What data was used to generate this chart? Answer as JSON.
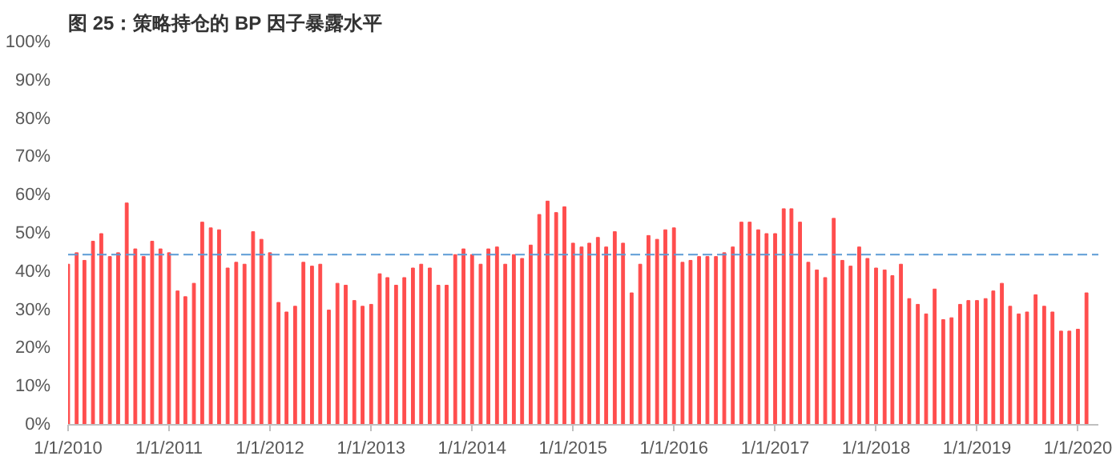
{
  "chart_data": {
    "type": "bar",
    "title": "图 25：策略持仓的 BP 因子暴露水平",
    "x": [
      "2010-01",
      "2010-02",
      "2010-03",
      "2010-04",
      "2010-05",
      "2010-06",
      "2010-07",
      "2010-08",
      "2010-09",
      "2010-10",
      "2010-11",
      "2010-12",
      "2011-01",
      "2011-02",
      "2011-03",
      "2011-04",
      "2011-05",
      "2011-06",
      "2011-07",
      "2011-08",
      "2011-09",
      "2011-10",
      "2011-11",
      "2011-12",
      "2012-01",
      "2012-02",
      "2012-03",
      "2012-04",
      "2012-05",
      "2012-06",
      "2012-07",
      "2012-08",
      "2012-09",
      "2012-10",
      "2012-11",
      "2012-12",
      "2013-01",
      "2013-02",
      "2013-03",
      "2013-04",
      "2013-05",
      "2013-06",
      "2013-07",
      "2013-08",
      "2013-09",
      "2013-10",
      "2013-11",
      "2013-12",
      "2014-01",
      "2014-02",
      "2014-03",
      "2014-04",
      "2014-05",
      "2014-06",
      "2014-07",
      "2014-08",
      "2014-09",
      "2014-10",
      "2014-11",
      "2014-12",
      "2015-01",
      "2015-02",
      "2015-03",
      "2015-04",
      "2015-05",
      "2015-06",
      "2015-07",
      "2015-08",
      "2015-09",
      "2015-10",
      "2015-11",
      "2015-12",
      "2016-01",
      "2016-02",
      "2016-03",
      "2016-04",
      "2016-05",
      "2016-06",
      "2016-07",
      "2016-08",
      "2016-09",
      "2016-10",
      "2016-11",
      "2016-12",
      "2017-01",
      "2017-02",
      "2017-03",
      "2017-04",
      "2017-05",
      "2017-06",
      "2017-07",
      "2017-08",
      "2017-09",
      "2017-10",
      "2017-11",
      "2017-12",
      "2018-01",
      "2018-02",
      "2018-03",
      "2018-04",
      "2018-05",
      "2018-06",
      "2018-07",
      "2018-08",
      "2018-09",
      "2018-10",
      "2018-11",
      "2018-12",
      "2019-01",
      "2019-02",
      "2019-03",
      "2019-04",
      "2019-05",
      "2019-06",
      "2019-07",
      "2019-08",
      "2019-09",
      "2019-10",
      "2019-11",
      "2019-12",
      "2020-01",
      "2020-02"
    ],
    "series": [
      {
        "color": "#ff4d4d",
        "values": [
          42,
          45,
          43,
          48,
          50,
          44,
          45,
          58,
          46,
          44,
          48,
          46,
          45,
          35,
          33.5,
          37,
          53,
          51.5,
          51,
          41,
          42.5,
          42,
          50.5,
          48.5,
          45,
          32,
          29.5,
          31,
          42.5,
          41.5,
          42,
          30,
          37,
          36.5,
          32.5,
          31,
          31.5,
          39.5,
          38.5,
          36.5,
          38.5,
          41,
          42,
          41,
          36.5,
          36.5,
          44.5,
          46,
          44.5,
          42,
          46,
          46.5,
          42,
          44.5,
          43.5,
          47,
          55,
          58.5,
          55.5,
          57,
          47.5,
          46.5,
          47.5,
          49,
          46.5,
          50.5,
          47.5,
          34.5,
          42,
          49.5,
          48.5,
          51,
          51.5,
          42.5,
          43,
          44,
          44,
          44,
          45,
          46.5,
          53,
          53,
          51,
          50,
          50,
          56.5,
          56.5,
          53,
          42.5,
          40.5,
          38.5,
          54,
          43,
          41.5,
          46.5,
          43.5,
          41,
          40.5,
          39,
          42,
          33,
          31.5,
          29,
          35.5,
          27.5,
          28,
          31.5,
          32.5,
          32.5,
          33,
          35,
          37,
          31,
          29,
          29.5,
          34,
          31,
          29.5,
          24.5,
          24.5,
          25,
          34.5
        ]
      }
    ],
    "xlim": [
      "2010-01-01",
      "2020-03-15"
    ],
    "xticks": [
      {
        "value": "2010-01-01",
        "label": "1/1/2010"
      },
      {
        "value": "2011-01-01",
        "label": "1/1/2011"
      },
      {
        "value": "2012-01-01",
        "label": "1/1/2012"
      },
      {
        "value": "2013-01-01",
        "label": "1/1/2013"
      },
      {
        "value": "2014-01-01",
        "label": "1/1/2014"
      },
      {
        "value": "2015-01-01",
        "label": "1/1/2015"
      },
      {
        "value": "2016-01-01",
        "label": "1/1/2016"
      },
      {
        "value": "2017-01-01",
        "label": "1/1/2017"
      },
      {
        "value": "2018-01-01",
        "label": "1/1/2018"
      },
      {
        "value": "2019-01-01",
        "label": "1/1/2019"
      },
      {
        "value": "2020-01-01",
        "label": "1/1/2020"
      }
    ],
    "ylim": [
      0,
      100
    ],
    "yticks": [
      {
        "value": 0,
        "label": "0%"
      },
      {
        "value": 10,
        "label": "10%"
      },
      {
        "value": 20,
        "label": "20%"
      },
      {
        "value": 30,
        "label": "30%"
      },
      {
        "value": 40,
        "label": "40%"
      },
      {
        "value": 50,
        "label": "50%"
      },
      {
        "value": 60,
        "label": "60%"
      },
      {
        "value": 70,
        "label": "70%"
      },
      {
        "value": 80,
        "label": "80%"
      },
      {
        "value": 90,
        "label": "90%"
      },
      {
        "value": 100,
        "label": "100%"
      }
    ],
    "ref_lines": [
      {
        "axis": "y",
        "value": 44.5,
        "color": "#5b9bd5",
        "line_style": "dashed"
      }
    ],
    "grid": false
  }
}
